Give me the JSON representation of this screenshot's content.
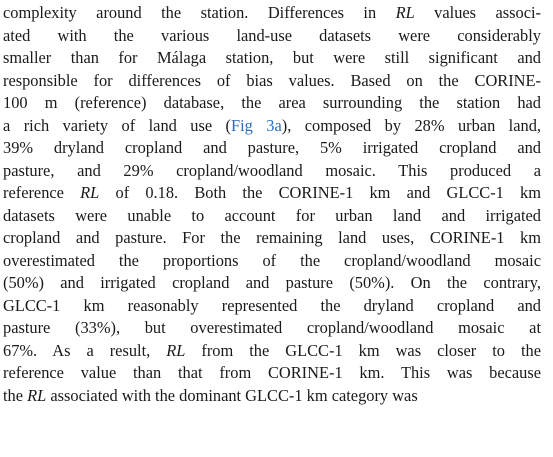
{
  "lines": [
    [
      {
        "t": "complexity around the station. Differences in "
      },
      {
        "t": "RL",
        "s": "it"
      },
      {
        "t": " values associ-"
      }
    ],
    [
      {
        "t": "ated with the various land-use datasets were considerably"
      }
    ],
    [
      {
        "t": "smaller than for Málaga station, but were still significant and"
      }
    ],
    [
      {
        "t": "responsible for differences of bias values. Based on the CORINE-"
      }
    ],
    [
      {
        "t": "100 m (reference) database, the area surrounding the station had"
      }
    ],
    [
      {
        "t": "a rich variety of land use ("
      },
      {
        "t": "Fig 3a",
        "s": "link"
      },
      {
        "t": "), composed by 28% urban land,"
      }
    ],
    [
      {
        "t": "39% dryland cropland and pasture, 5% irrigated cropland and"
      }
    ],
    [
      {
        "t": "pasture, and 29% cropland/woodland mosaic. This produced a"
      }
    ],
    [
      {
        "t": "reference "
      },
      {
        "t": "RL",
        "s": "it"
      },
      {
        "t": " of 0.18. Both the CORINE-1 km and GLCC-1 km"
      }
    ],
    [
      {
        "t": "datasets were unable to account for urban land and irrigated"
      }
    ],
    [
      {
        "t": "cropland and pasture. For the remaining land uses, CORINE-1 km"
      }
    ],
    [
      {
        "t": "overestimated the proportions of the cropland/woodland mosaic"
      }
    ],
    [
      {
        "t": "(50%) and irrigated cropland and pasture (50%). On the contrary,"
      }
    ],
    [
      {
        "t": "GLCC-1 km reasonably represented the dryland cropland and"
      }
    ],
    [
      {
        "t": "pasture (33%), but overestimated cropland/woodland mosaic at"
      }
    ],
    [
      {
        "t": "67%. As a result, "
      },
      {
        "t": "RL",
        "s": "it"
      },
      {
        "t": " from the GLCC-1 km was closer to the"
      }
    ],
    [
      {
        "t": "reference value than that from CORINE-1 km. This was because"
      }
    ],
    [
      {
        "t": "the "
      },
      {
        "t": "RL",
        "s": "it"
      },
      {
        "t": " associated with the dominant GLCC-1 km category was"
      }
    ]
  ]
}
